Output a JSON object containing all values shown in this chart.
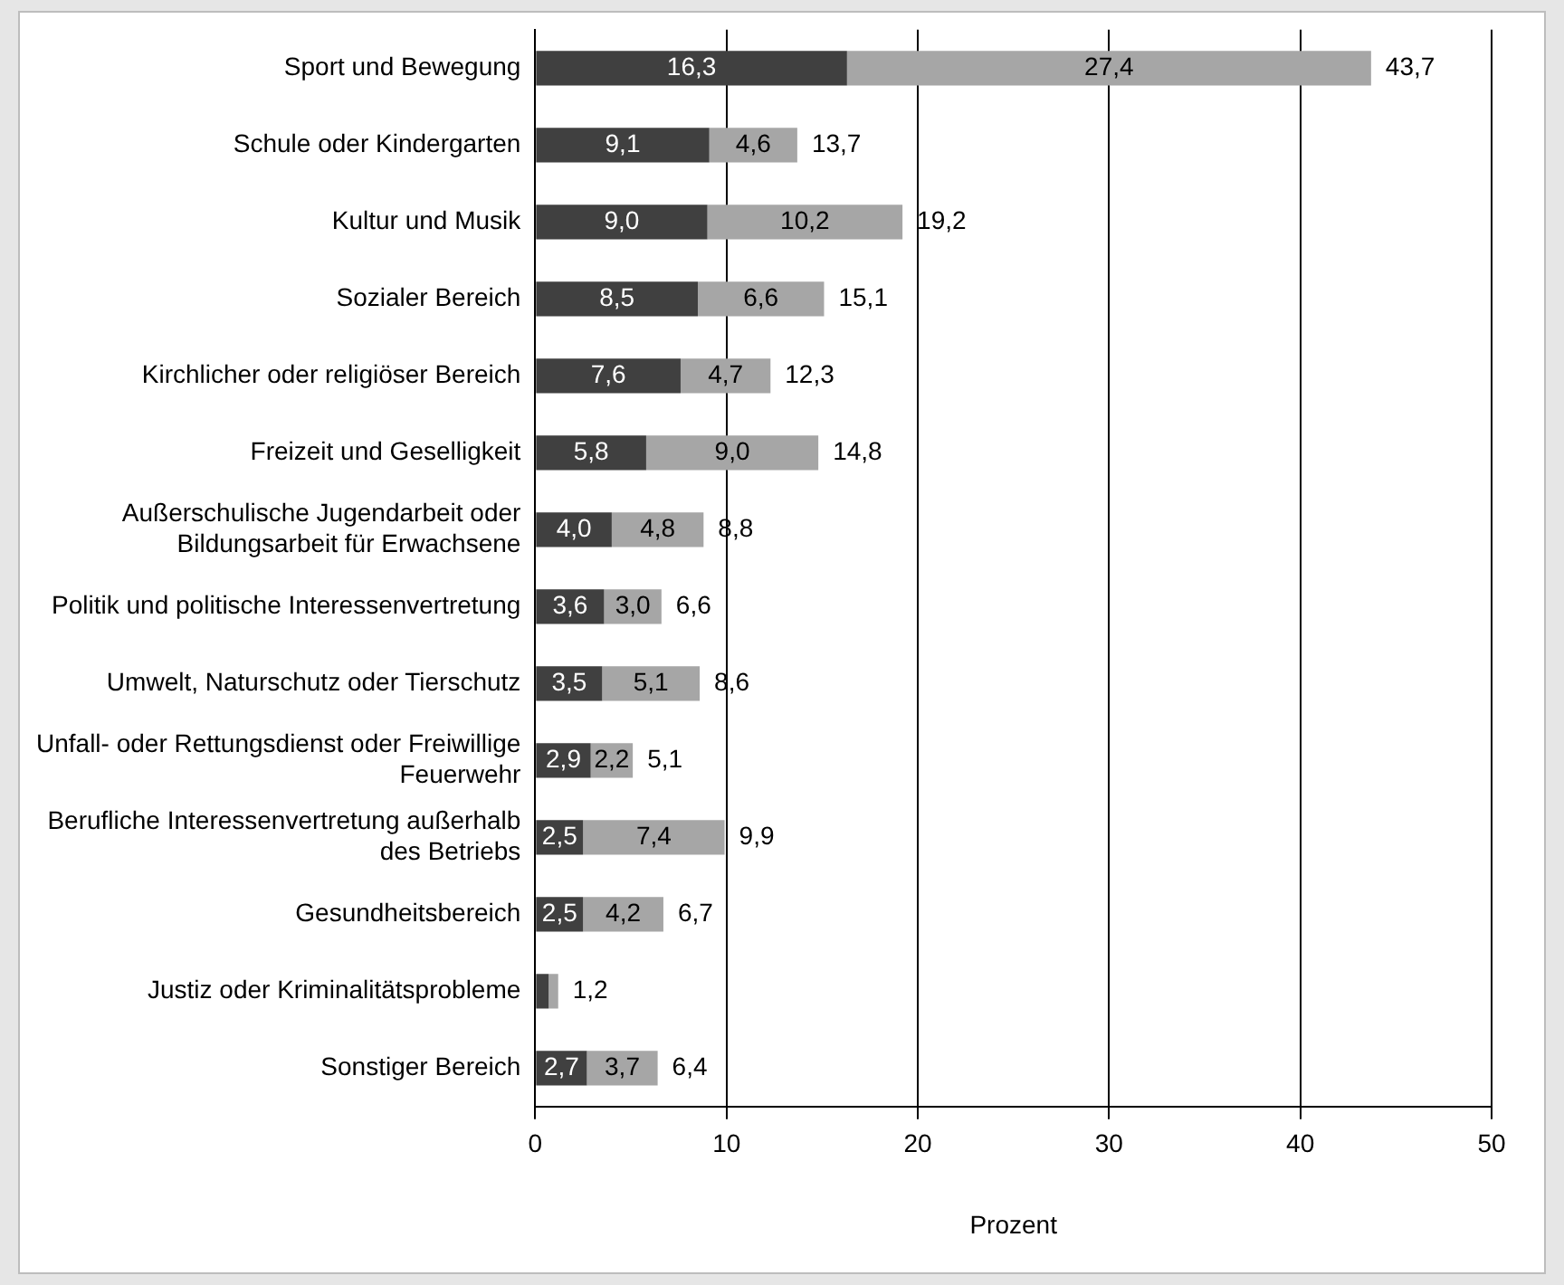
{
  "chart_data": {
    "type": "bar",
    "orientation": "horizontal",
    "stacked": true,
    "categories": [
      "Sport und Bewegung",
      "Schule oder Kindergarten",
      "Kultur und Musik",
      "Sozialer Bereich",
      "Kirchlicher oder religiöser Bereich",
      "Freizeit und Geselligkeit",
      "Außerschulische Jugendarbeit oder Bildungsarbeit für Erwachsene",
      "Politik und politische Interessenvertretung",
      "Umwelt, Naturschutz oder Tierschutz",
      "Unfall- oder Rettungsdienst oder Freiwillige Feuerwehr",
      "Berufliche Interessenvertretung außerhalb des Betriebs",
      "Gesundheitsbereich",
      "Justiz oder Kriminalitätsprobleme",
      "Sonstiger Bereich"
    ],
    "series": [
      {
        "color": "#404040",
        "values": [
          16.3,
          9.1,
          9.0,
          8.5,
          7.6,
          5.8,
          4.0,
          3.6,
          3.5,
          2.9,
          2.5,
          2.5,
          0.7,
          2.7
        ],
        "value_labels": [
          "16,3",
          "9,1",
          "9,0",
          "8,5",
          "7,6",
          "5,8",
          "4,0",
          "3,6",
          "3,5",
          "2,9",
          "2,5",
          "2,5",
          null,
          "2,7"
        ]
      },
      {
        "color": "#a6a6a6",
        "values": [
          27.4,
          4.6,
          10.2,
          6.6,
          4.7,
          9.0,
          4.8,
          3.0,
          5.1,
          2.2,
          7.4,
          4.2,
          0.5,
          3.7
        ],
        "value_labels": [
          "27,4",
          "4,6",
          "10,2",
          "6,6",
          "4,7",
          "9,0",
          "4,8",
          "3,0",
          "5,1",
          "2,2",
          "7,4",
          "4,2",
          null,
          "3,7"
        ]
      }
    ],
    "totals": [
      "43,7",
      "13,7",
      "19,2",
      "15,1",
      "12,3",
      "14,8",
      "8,8",
      "6,6",
      "8,6",
      "5,1",
      "9,9",
      "6,7",
      "1,2",
      "6,4"
    ],
    "xlim": [
      0,
      50
    ],
    "xticks": [
      0,
      10,
      20,
      30,
      40,
      50
    ],
    "xlabel": "Prozent",
    "grid": "x",
    "legend": false
  }
}
